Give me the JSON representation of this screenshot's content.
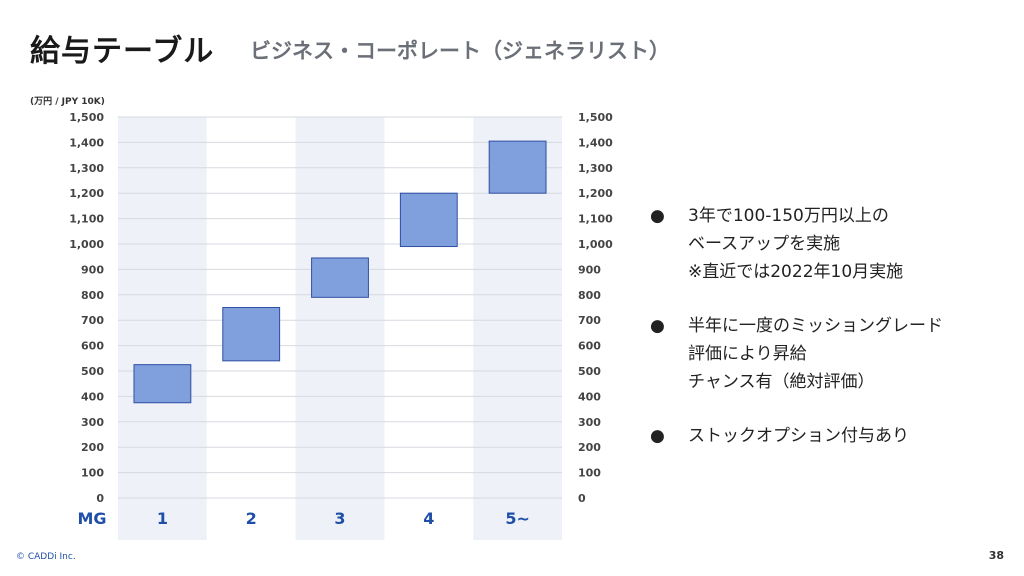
{
  "header": {
    "title": "給与テーブル",
    "subtitle": "ビジネス・コーポレート（ジェネラリスト）"
  },
  "chart_data": {
    "type": "bar",
    "unit_label": "(万円 / JPY 10K)",
    "x_axis_label": "MG",
    "categories": [
      "1",
      "2",
      "3",
      "4",
      "5~"
    ],
    "ranges": [
      {
        "low": 375,
        "high": 525
      },
      {
        "low": 540,
        "high": 750
      },
      {
        "low": 790,
        "high": 945
      },
      {
        "low": 990,
        "high": 1200
      },
      {
        "low": 1200,
        "high": 1405
      }
    ],
    "ylim": [
      0,
      1500
    ],
    "yticks": [
      "0",
      "100",
      "200",
      "300",
      "400",
      "500",
      "600",
      "700",
      "800",
      "900",
      "1,000",
      "1,100",
      "1,200",
      "1,300",
      "1,400",
      "1,500"
    ],
    "grid": true,
    "colors": {
      "bar_fill": "#7f9fdd",
      "bar_stroke": "#2f4fa3",
      "band": "#eef1f7",
      "category_text": "#1f4fa8"
    }
  },
  "bullets": [
    {
      "dot": "●",
      "lines": [
        "3年で100-150万円以上の",
        "ベースアップを実施",
        "※直近では2022年10月実施"
      ]
    },
    {
      "dot": "●",
      "lines": [
        "半年に一度のミッショングレード",
        "評価により昇給",
        "チャンス有（絶対評価）"
      ]
    },
    {
      "dot": "●",
      "lines": [
        "ストックオプション付与あり"
      ]
    }
  ],
  "footer": {
    "copyright": "© CADDi Inc.",
    "page_number": "38"
  }
}
